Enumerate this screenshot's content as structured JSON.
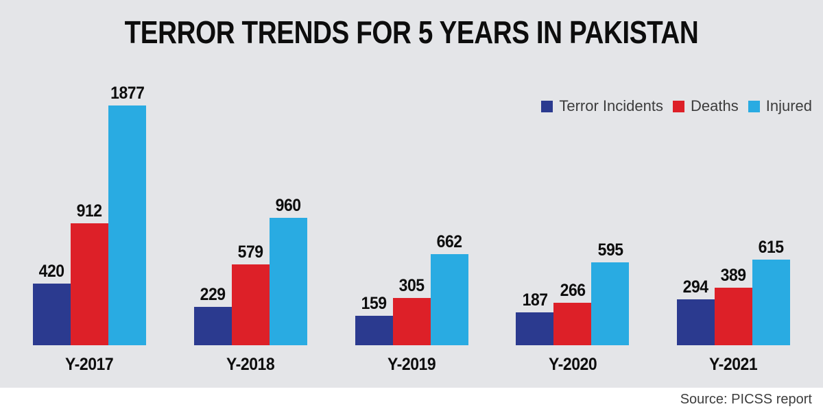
{
  "title": "TERROR TRENDS FOR 5 YEARS IN PAKISTAN",
  "source": "Source: PICSS report",
  "colors": {
    "background": "#e4e5e8",
    "footer_background": "#ffffff",
    "navy": "#2b3a8f",
    "red": "#dd2028",
    "cyan": "#29abe2",
    "title_text": "#0d0d0d",
    "legend_text": "#3c3c3c",
    "source_text": "#3d3d3d"
  },
  "chart_data": {
    "type": "bar",
    "title": "TERROR TRENDS FOR 5 YEARS IN PAKISTAN",
    "categories": [
      "Y-2017",
      "Y-2018",
      "Y-2019",
      "Y-2020",
      "Y-2021"
    ],
    "series": [
      {
        "name": "Terror Incidents",
        "color": "#2b3a8f",
        "values": [
          420,
          229,
          159,
          187,
          294
        ]
      },
      {
        "name": "Deaths",
        "color": "#dd2028",
        "values": [
          912,
          579,
          305,
          266,
          389
        ]
      },
      {
        "name": "Injured",
        "color": "#29abe2",
        "values": [
          1877,
          960,
          662,
          595,
          615
        ]
      }
    ],
    "xlabel": "",
    "ylabel": "",
    "ylim": [
      0,
      1877
    ],
    "grid": false,
    "value_labels": true,
    "legend_position": "top-right",
    "annotations": [
      "Source: PICSS report"
    ]
  }
}
